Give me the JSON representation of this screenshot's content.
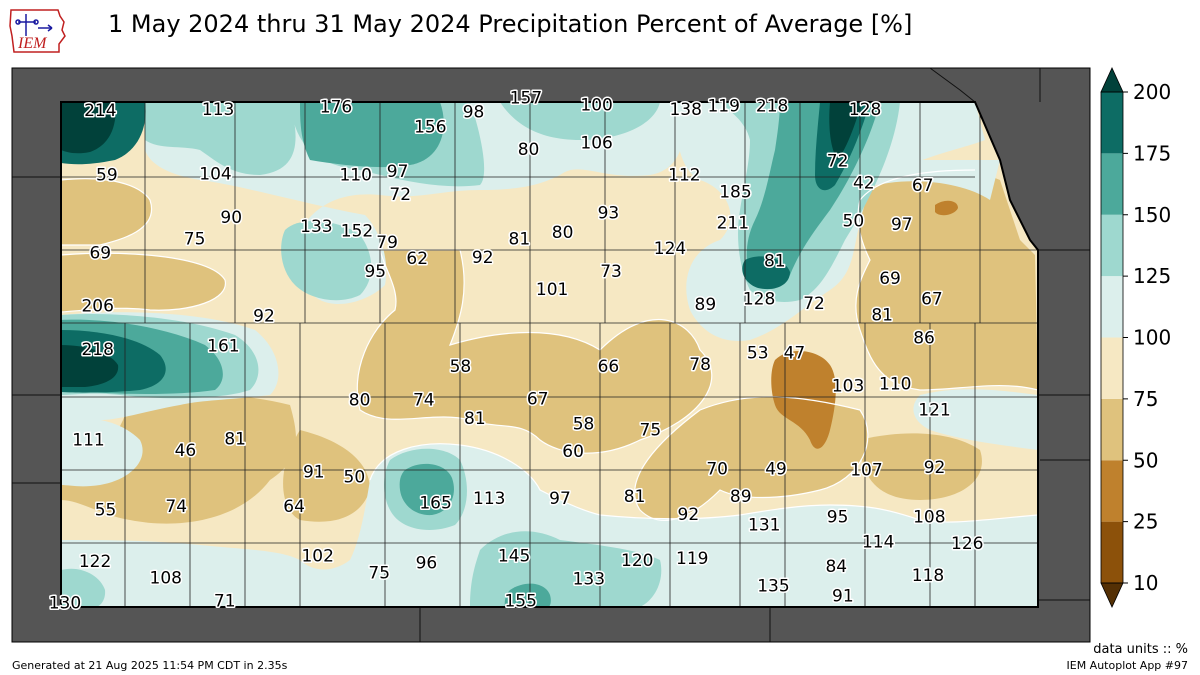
{
  "title": "1 May 2024 thru 31 May 2024 Precipitation Percent of Average [%]",
  "logo_text": "IEM",
  "colorbar": {
    "ticks": [
      10,
      25,
      50,
      75,
      100,
      125,
      150,
      175,
      200
    ],
    "colors": [
      "#8c510a",
      "#bf812d",
      "#dfc27d",
      "#f6e8c3",
      "#dcefec",
      "#9ed8cf",
      "#4ca99b",
      "#0d6c64"
    ],
    "over_color": "#01413a",
    "under_color": "#543005"
  },
  "station_values": [
    {
      "label": "214",
      "x": -101.75,
      "y": 39.92
    },
    {
      "label": "113",
      "x": -100.85,
      "y": 39.93
    },
    {
      "label": "176",
      "x": -99.95,
      "y": 39.95
    },
    {
      "label": "156",
      "x": -99.23,
      "y": 39.78
    },
    {
      "label": "98",
      "x": -98.9,
      "y": 39.91
    },
    {
      "label": "157",
      "x": -98.5,
      "y": 40.03
    },
    {
      "label": "100",
      "x": -97.96,
      "y": 39.97
    },
    {
      "label": "138",
      "x": -97.28,
      "y": 39.93
    },
    {
      "label": "119",
      "x": -96.99,
      "y": 39.96
    },
    {
      "label": "218",
      "x": -96.62,
      "y": 39.96
    },
    {
      "label": "128",
      "x": -95.91,
      "y": 39.93
    },
    {
      "label": "80",
      "x": -98.48,
      "y": 39.58
    },
    {
      "label": "106",
      "x": -97.96,
      "y": 39.64
    },
    {
      "label": "59",
      "x": -101.7,
      "y": 39.36
    },
    {
      "label": "104",
      "x": -100.87,
      "y": 39.37
    },
    {
      "label": "110",
      "x": -99.8,
      "y": 39.36
    },
    {
      "label": "97",
      "x": -99.48,
      "y": 39.39
    },
    {
      "label": "72",
      "x": -99.46,
      "y": 39.19
    },
    {
      "label": "112",
      "x": -97.29,
      "y": 39.36
    },
    {
      "label": "185",
      "x": -96.9,
      "y": 39.21
    },
    {
      "label": "72",
      "x": -96.12,
      "y": 39.48
    },
    {
      "label": "42",
      "x": -95.92,
      "y": 39.29
    },
    {
      "label": "67",
      "x": -95.47,
      "y": 39.27
    },
    {
      "label": "90",
      "x": -100.75,
      "y": 38.99
    },
    {
      "label": "133",
      "x": -100.1,
      "y": 38.91
    },
    {
      "label": "152",
      "x": -99.79,
      "y": 38.87
    },
    {
      "label": "79",
      "x": -99.56,
      "y": 38.77
    },
    {
      "label": "62",
      "x": -99.33,
      "y": 38.63
    },
    {
      "label": "92",
      "x": -98.83,
      "y": 38.64
    },
    {
      "label": "81",
      "x": -98.55,
      "y": 38.8
    },
    {
      "label": "80",
      "x": -98.22,
      "y": 38.86
    },
    {
      "label": "93",
      "x": -97.87,
      "y": 39.03
    },
    {
      "label": "211",
      "x": -96.92,
      "y": 38.94
    },
    {
      "label": "50",
      "x": -96.0,
      "y": 38.96
    },
    {
      "label": "97",
      "x": -95.63,
      "y": 38.93
    },
    {
      "label": "69",
      "x": -101.75,
      "y": 38.68
    },
    {
      "label": "75",
      "x": -101.03,
      "y": 38.8
    },
    {
      "label": "95",
      "x": -99.65,
      "y": 38.52
    },
    {
      "label": "124",
      "x": -97.4,
      "y": 38.72
    },
    {
      "label": "81",
      "x": -96.6,
      "y": 38.61
    },
    {
      "label": "73",
      "x": -97.85,
      "y": 38.52
    },
    {
      "label": "101",
      "x": -98.3,
      "y": 38.36
    },
    {
      "label": "69",
      "x": -95.72,
      "y": 38.46
    },
    {
      "label": "206",
      "x": -101.77,
      "y": 38.22
    },
    {
      "label": "92",
      "x": -100.5,
      "y": 38.13
    },
    {
      "label": "89",
      "x": -97.13,
      "y": 38.23
    },
    {
      "label": "128",
      "x": -96.72,
      "y": 38.28
    },
    {
      "label": "72",
      "x": -96.3,
      "y": 38.24
    },
    {
      "label": "81",
      "x": -95.78,
      "y": 38.14
    },
    {
      "label": "67",
      "x": -95.4,
      "y": 38.28
    },
    {
      "label": "218",
      "x": -101.77,
      "y": 37.84
    },
    {
      "label": "161",
      "x": -100.81,
      "y": 37.87
    },
    {
      "label": "86",
      "x": -95.46,
      "y": 37.94
    },
    {
      "label": "58",
      "x": -99.0,
      "y": 37.69
    },
    {
      "label": "66",
      "x": -97.87,
      "y": 37.69
    },
    {
      "label": "78",
      "x": -97.17,
      "y": 37.71
    },
    {
      "label": "53",
      "x": -96.73,
      "y": 37.81
    },
    {
      "label": "47",
      "x": -96.45,
      "y": 37.81
    },
    {
      "label": "103",
      "x": -96.04,
      "y": 37.52
    },
    {
      "label": "110",
      "x": -95.68,
      "y": 37.54
    },
    {
      "label": "121",
      "x": -95.38,
      "y": 37.31
    },
    {
      "label": "80",
      "x": -99.77,
      "y": 37.4
    },
    {
      "label": "74",
      "x": -99.28,
      "y": 37.4
    },
    {
      "label": "67",
      "x": -98.41,
      "y": 37.41
    },
    {
      "label": "81",
      "x": -98.89,
      "y": 37.24
    },
    {
      "label": "58",
      "x": -98.06,
      "y": 37.19
    },
    {
      "label": "75",
      "x": -97.55,
      "y": 37.14
    },
    {
      "label": "111",
      "x": -101.84,
      "y": 37.05
    },
    {
      "label": "46",
      "x": -101.1,
      "y": 36.96
    },
    {
      "label": "81",
      "x": -100.72,
      "y": 37.06
    },
    {
      "label": "60",
      "x": -98.14,
      "y": 36.95
    },
    {
      "label": "91",
      "x": -100.12,
      "y": 36.77
    },
    {
      "label": "50",
      "x": -99.81,
      "y": 36.73
    },
    {
      "label": "70",
      "x": -97.04,
      "y": 36.8
    },
    {
      "label": "49",
      "x": -96.59,
      "y": 36.8
    },
    {
      "label": "107",
      "x": -95.9,
      "y": 36.79
    },
    {
      "label": "92",
      "x": -95.38,
      "y": 36.81
    },
    {
      "label": "165",
      "x": -99.19,
      "y": 36.5
    },
    {
      "label": "113",
      "x": -98.78,
      "y": 36.54
    },
    {
      "label": "97",
      "x": -98.24,
      "y": 36.54
    },
    {
      "label": "81",
      "x": -97.67,
      "y": 36.56
    },
    {
      "label": "89",
      "x": -96.86,
      "y": 36.56
    },
    {
      "label": "55",
      "x": -101.71,
      "y": 36.44
    },
    {
      "label": "74",
      "x": -101.17,
      "y": 36.47
    },
    {
      "label": "64",
      "x": -100.27,
      "y": 36.47
    },
    {
      "label": "92",
      "x": -97.26,
      "y": 36.4
    },
    {
      "label": "131",
      "x": -96.68,
      "y": 36.31
    },
    {
      "label": "95",
      "x": -96.12,
      "y": 36.38
    },
    {
      "label": "108",
      "x": -95.42,
      "y": 36.38
    },
    {
      "label": "114",
      "x": -95.81,
      "y": 36.16
    },
    {
      "label": "126",
      "x": -95.13,
      "y": 36.15
    },
    {
      "label": "122",
      "x": -101.79,
      "y": 35.99
    },
    {
      "label": "102",
      "x": -100.09,
      "y": 36.04
    },
    {
      "label": "145",
      "x": -98.59,
      "y": 36.04
    },
    {
      "label": "120",
      "x": -97.65,
      "y": 36.0
    },
    {
      "label": "119",
      "x": -97.23,
      "y": 36.02
    },
    {
      "label": "108",
      "x": -101.25,
      "y": 35.85
    },
    {
      "label": "75",
      "x": -99.62,
      "y": 35.89
    },
    {
      "label": "96",
      "x": -99.26,
      "y": 35.98
    },
    {
      "label": "133",
      "x": -98.02,
      "y": 35.84
    },
    {
      "label": "84",
      "x": -96.13,
      "y": 35.95
    },
    {
      "label": "118",
      "x": -95.43,
      "y": 35.87
    },
    {
      "label": "135",
      "x": -96.61,
      "y": 35.78
    },
    {
      "label": "91",
      "x": -96.08,
      "y": 35.69
    },
    {
      "label": "130",
      "x": -102.02,
      "y": 35.63
    },
    {
      "label": "71",
      "x": -100.8,
      "y": 35.65
    },
    {
      "label": "155",
      "x": -98.54,
      "y": 35.65
    }
  ],
  "units_note": "data units :: %",
  "generated": "Generated at 21 Aug 2025 11:54 PM CDT in 2.35s",
  "app": "IEM Autoplot App #97"
}
